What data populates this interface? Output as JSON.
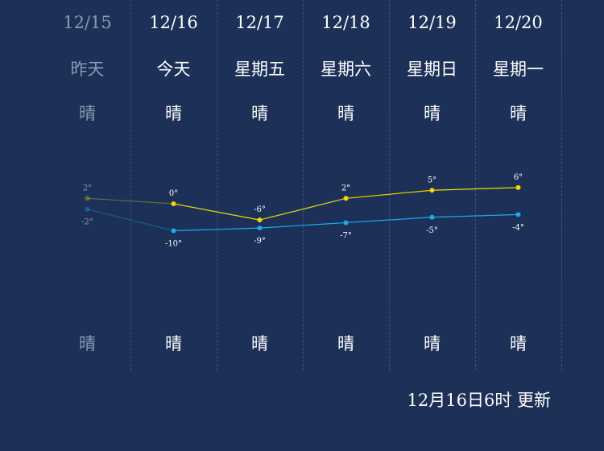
{
  "days": [
    {
      "date": "12/15",
      "dow": "昨天",
      "weather_day": "晴",
      "weather_night": "晴",
      "high": "2°",
      "low": "-2°",
      "past": true
    },
    {
      "date": "12/16",
      "dow": "今天",
      "weather_day": "晴",
      "weather_night": "晴",
      "high": "0°",
      "low": "-10°",
      "past": false
    },
    {
      "date": "12/17",
      "dow": "星期五",
      "weather_day": "晴",
      "weather_night": "晴",
      "high": "-6°",
      "low": "-9°",
      "past": false
    },
    {
      "date": "12/18",
      "dow": "星期六",
      "weather_day": "晴",
      "weather_night": "晴",
      "high": "2°",
      "low": "-7°",
      "past": false
    },
    {
      "date": "12/19",
      "dow": "星期日",
      "weather_day": "晴",
      "weather_night": "晴",
      "high": "5°",
      "low": "-5°",
      "past": false
    },
    {
      "date": "12/20",
      "dow": "星期一",
      "weather_day": "晴",
      "weather_night": "晴",
      "high": "6°",
      "low": "-4°",
      "past": false
    }
  ],
  "chart_data": {
    "type": "line",
    "x": [
      "12/15",
      "12/16",
      "12/17",
      "12/18",
      "12/19",
      "12/20"
    ],
    "series": [
      {
        "values": [
          2,
          0,
          -6,
          2,
          5,
          6
        ]
      },
      {
        "values": [
          -2,
          -10,
          -9,
          -7,
          -5,
          -4
        ]
      }
    ]
  },
  "colors": {
    "background": "#1c3058",
    "high_line": "#f5d800",
    "low_line": "#1eaaf0",
    "past_text": "#8a9ab4"
  },
  "update_text": "12月16日6时 更新"
}
